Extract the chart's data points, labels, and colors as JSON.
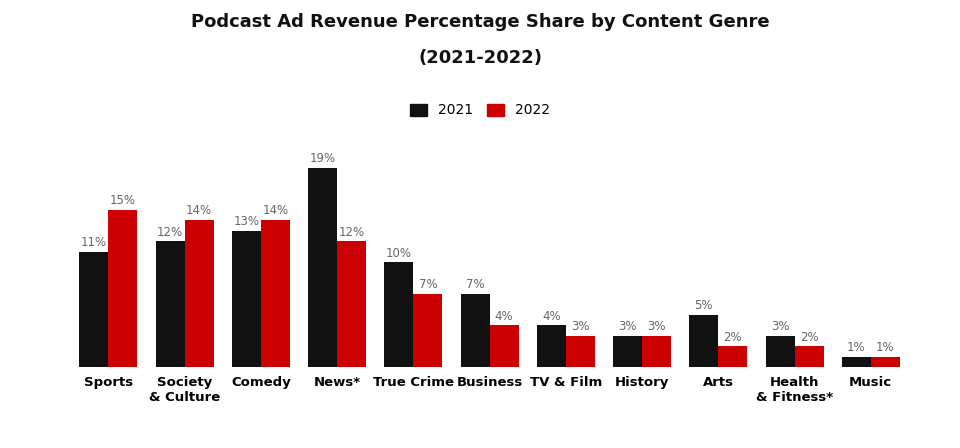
{
  "title_line1": "Podcast Ad Revenue Percentage Share by Content Genre",
  "title_line2": "(2021-2022)",
  "categories": [
    "Sports",
    "Society\n& Culture",
    "Comedy",
    "News*",
    "True Crime",
    "Business",
    "TV & Film",
    "History",
    "Arts",
    "Health\n& Fitness*",
    "Music"
  ],
  "values_2021": [
    11,
    12,
    13,
    19,
    10,
    7,
    4,
    3,
    5,
    3,
    1
  ],
  "values_2022": [
    15,
    14,
    14,
    12,
    7,
    4,
    3,
    3,
    2,
    2,
    1
  ],
  "color_2021": "#111111",
  "color_2022": "#cc0000",
  "bar_width": 0.38,
  "ylim": [
    0,
    23
  ],
  "legend_labels": [
    "2021",
    "2022"
  ],
  "background_color": "#ffffff",
  "title_fontsize": 13,
  "label_fontsize": 8.5,
  "tick_fontsize": 9.5,
  "legend_fontsize": 10
}
